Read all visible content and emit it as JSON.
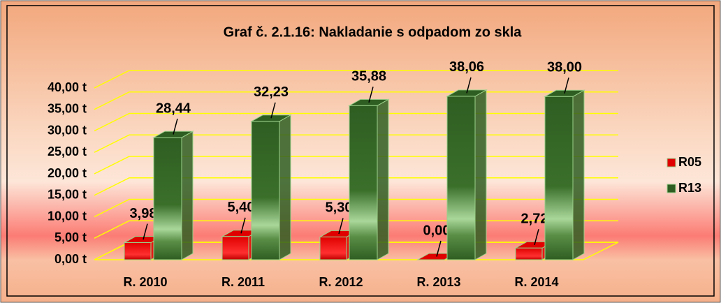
{
  "chart_data": {
    "type": "bar3d",
    "title": "Graf č. 2.1.16: Nakladanie s odpadom zo skla",
    "categories": [
      "R. 2010",
      "R. 2011",
      "R. 2012",
      "R. 2013",
      "R. 2014"
    ],
    "series": [
      {
        "name": "R05",
        "color": "#e00000",
        "values": [
          3.98,
          5.4,
          5.3,
          0.0,
          2.72
        ],
        "value_labels": [
          "3,98",
          "5,40",
          "5,30",
          "0,00",
          "2,72"
        ]
      },
      {
        "name": "R13",
        "color": "#2f5e22",
        "values": [
          28.44,
          32.23,
          35.88,
          38.06,
          38.0
        ],
        "value_labels": [
          "28,44",
          "32,23",
          "35,88",
          "38,06",
          "38,00"
        ]
      }
    ],
    "ylim": [
      0,
      40
    ],
    "yticks": [
      {
        "value": 0,
        "label": "0,00 t"
      },
      {
        "value": 5,
        "label": "5,00 t"
      },
      {
        "value": 10,
        "label": "10,00 t"
      },
      {
        "value": 15,
        "label": "15,00 t"
      },
      {
        "value": 20,
        "label": "20,00 t"
      },
      {
        "value": 25,
        "label": "25,00 t"
      },
      {
        "value": 30,
        "label": "30,00 t"
      },
      {
        "value": 35,
        "label": "35,00 t"
      },
      {
        "value": 40,
        "label": "40,00 t"
      }
    ],
    "grid": true,
    "legend": "right"
  }
}
